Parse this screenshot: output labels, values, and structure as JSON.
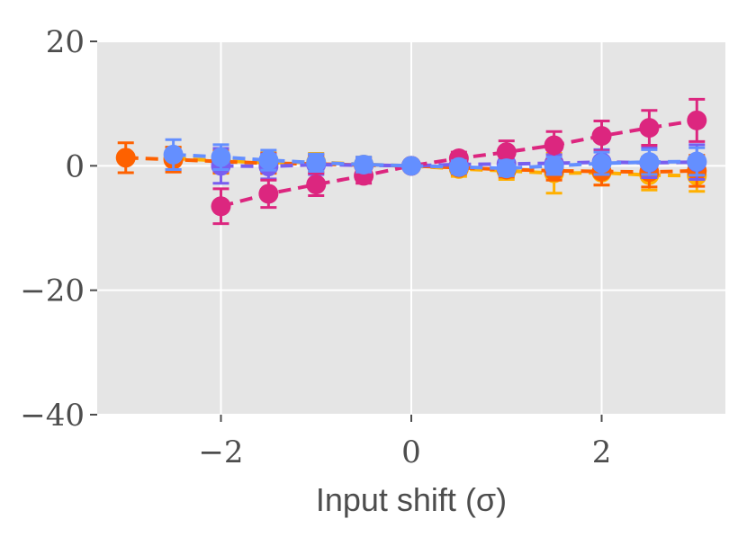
{
  "chart_data": {
    "type": "line",
    "title": "",
    "xlabel": "Input shift (σ)",
    "ylabel": "",
    "xlim": [
      -3.3,
      3.3
    ],
    "ylim": [
      -40,
      20
    ],
    "xticks": [
      -2,
      0,
      2
    ],
    "xtick_labels": [
      "−2",
      "0",
      "2"
    ],
    "yticks": [
      -40,
      -20,
      0,
      20
    ],
    "ytick_labels": [
      "−40",
      "−20",
      "0",
      "20"
    ],
    "grid": true,
    "legend": "none",
    "background": "#e5e5e5",
    "series": [
      {
        "color": "#ffb000",
        "x": [
          -2.5,
          -2,
          -1.5,
          -1,
          -0.5,
          0,
          0.5,
          1,
          1.5,
          2,
          2.5,
          3
        ],
        "y": [
          1.2,
          0.8,
          0.5,
          0.6,
          0.2,
          0,
          -0.5,
          -0.8,
          -1.2,
          -1.1,
          -1.5,
          -1.6
        ],
        "err": [
          1.8,
          2.0,
          1.6,
          1.4,
          1.2,
          0,
          1.2,
          1.4,
          3.2,
          2.0,
          2.4,
          2.5
        ]
      },
      {
        "color": "#fe6100",
        "x": [
          -3,
          -2.5,
          -2,
          -1.5,
          -1,
          -0.5,
          0,
          0.5,
          1,
          1.5,
          2,
          2.5,
          3
        ],
        "y": [
          1.3,
          1.0,
          0.7,
          0.4,
          0.3,
          0.1,
          0,
          -0.3,
          -0.6,
          -0.8,
          -0.9,
          -1.0,
          -0.8
        ],
        "err": [
          2.4,
          2.0,
          1.8,
          1.6,
          1.4,
          1.2,
          0,
          1.0,
          1.2,
          1.5,
          2.2,
          2.4,
          2.5
        ]
      },
      {
        "color": "#785ef0",
        "x": [
          -2,
          -1.5,
          -1,
          -0.5,
          0,
          0.5,
          1,
          1.5,
          2,
          2.5,
          3
        ],
        "y": [
          0.0,
          -0.1,
          0.2,
          0.1,
          0,
          0.2,
          0.3,
          0.4,
          0.6,
          0.5,
          0.6
        ],
        "err": [
          2.8,
          2.0,
          1.6,
          1.2,
          0,
          1.0,
          1.2,
          1.4,
          2.0,
          2.4,
          2.8
        ]
      },
      {
        "color": "#dc267f",
        "x": [
          -2,
          -1.5,
          -1,
          -0.5,
          0,
          0.5,
          1,
          1.5,
          2,
          2.5,
          3
        ],
        "y": [
          -6.5,
          -4.5,
          -3.0,
          -1.6,
          0,
          1.2,
          2.2,
          3.3,
          4.8,
          6.1,
          7.3
        ],
        "err": [
          2.8,
          2.2,
          1.8,
          1.2,
          0,
          1.0,
          1.8,
          2.2,
          2.4,
          2.8,
          3.4
        ]
      },
      {
        "color": "#648fff",
        "x": [
          -2.5,
          -2,
          -1.5,
          -1,
          -0.5,
          0,
          0.5,
          1,
          1.5,
          2,
          2.5,
          3
        ],
        "y": [
          1.8,
          1.4,
          0.9,
          0.5,
          0.2,
          0,
          -0.2,
          -0.4,
          0.0,
          0.4,
          0.6,
          0.7
        ],
        "err": [
          2.4,
          2.0,
          1.6,
          1.4,
          1.2,
          0,
          1.0,
          1.2,
          1.4,
          1.8,
          2.0,
          2.2
        ]
      }
    ]
  }
}
